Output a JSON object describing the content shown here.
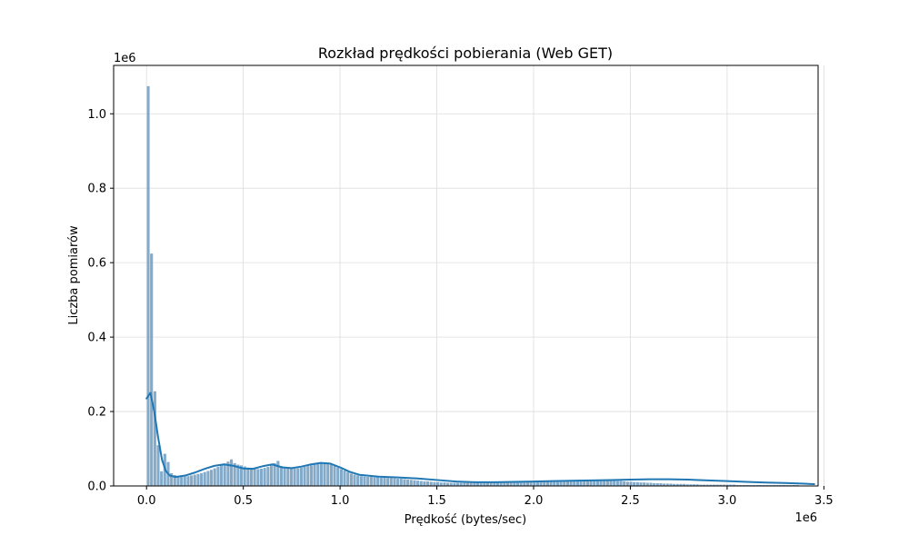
{
  "chart_data": {
    "type": "bar",
    "title": "Rozkład prędkości pobierania (Web GET)",
    "xlabel": "Prędkość (bytes/sec)",
    "ylabel": "Liczba pomiarów",
    "x_offset_label": "1e6",
    "y_offset_label": "1e6",
    "xlim": [
      -0.17,
      3.47
    ],
    "ylim": [
      0,
      1.13
    ],
    "xticks": [
      {
        "value": 0.0,
        "label": "0.0"
      },
      {
        "value": 0.5,
        "label": "0.5"
      },
      {
        "value": 1.0,
        "label": "1.0"
      },
      {
        "value": 1.5,
        "label": "1.5"
      },
      {
        "value": 2.0,
        "label": "2.0"
      },
      {
        "value": 2.5,
        "label": "2.5"
      },
      {
        "value": 3.0,
        "label": "3.0"
      },
      {
        "value": 3.5,
        "label": "3.5"
      }
    ],
    "yticks": [
      {
        "value": 0.0,
        "label": "0.0"
      },
      {
        "value": 0.2,
        "label": "0.2"
      },
      {
        "value": 0.4,
        "label": "0.4"
      },
      {
        "value": 0.6,
        "label": "0.6"
      },
      {
        "value": 0.8,
        "label": "0.8"
      },
      {
        "value": 1.0,
        "label": "1.0"
      }
    ],
    "grid": true,
    "series": [
      {
        "kind": "histogram",
        "color": "#5b8db8",
        "bin_width": 0.0172,
        "bin_start": 0.0,
        "values": [
          1.075,
          0.625,
          0.255,
          0.11,
          0.04,
          0.087,
          0.065,
          0.035,
          0.03,
          0.024,
          0.025,
          0.026,
          0.027,
          0.029,
          0.031,
          0.033,
          0.035,
          0.038,
          0.041,
          0.044,
          0.048,
          0.052,
          0.056,
          0.061,
          0.066,
          0.072,
          0.062,
          0.058,
          0.056,
          0.053,
          0.05,
          0.049,
          0.047,
          0.046,
          0.047,
          0.049,
          0.052,
          0.056,
          0.062,
          0.068,
          0.054,
          0.051,
          0.049,
          0.047,
          0.047,
          0.048,
          0.05,
          0.052,
          0.054,
          0.056,
          0.058,
          0.06,
          0.061,
          0.061,
          0.06,
          0.058,
          0.054,
          0.05,
          0.046,
          0.042,
          0.038,
          0.034,
          0.031,
          0.029,
          0.027,
          0.026,
          0.025,
          0.025,
          0.024,
          0.024,
          0.023,
          0.023,
          0.022,
          0.022,
          0.021,
          0.02,
          0.02,
          0.019,
          0.018,
          0.017,
          0.016,
          0.015,
          0.014,
          0.013,
          0.013,
          0.012,
          0.011,
          0.011,
          0.01,
          0.01,
          0.009,
          0.009,
          0.009,
          0.009,
          0.009,
          0.009,
          0.009,
          0.009,
          0.009,
          0.009,
          0.009,
          0.01,
          0.01,
          0.01,
          0.01,
          0.01,
          0.01,
          0.01,
          0.011,
          0.011,
          0.011,
          0.011,
          0.011,
          0.012,
          0.012,
          0.012,
          0.012,
          0.013,
          0.013,
          0.013,
          0.014,
          0.014,
          0.014,
          0.015,
          0.015,
          0.015,
          0.015,
          0.016,
          0.016,
          0.016,
          0.016,
          0.016,
          0.016,
          0.016,
          0.016,
          0.016,
          0.016,
          0.016,
          0.015,
          0.015,
          0.015,
          0.014,
          0.014,
          0.013,
          0.012,
          0.012,
          0.011,
          0.011,
          0.01,
          0.01,
          0.009,
          0.009,
          0.008,
          0.008,
          0.008,
          0.007,
          0.007,
          0.007,
          0.006,
          0.006,
          0.006,
          0.006,
          0.005,
          0.005,
          0.005,
          0.005,
          0.004,
          0.004,
          0.004,
          0.004,
          0.004,
          0.004,
          0.004,
          0.004,
          0.004,
          0.004,
          0.004,
          0.003,
          0.003,
          0.003,
          0.003,
          0.003,
          0.003,
          0.003,
          0.003,
          0.003,
          0.003,
          0.003,
          0.003,
          0.003,
          0.003,
          0.003,
          0.003,
          0.003,
          0.003,
          0.003
        ]
      },
      {
        "kind": "kde",
        "color": "#1f77b4",
        "x": [
          0.0,
          0.02,
          0.04,
          0.06,
          0.08,
          0.1,
          0.12,
          0.15,
          0.2,
          0.25,
          0.3,
          0.35,
          0.4,
          0.45,
          0.5,
          0.55,
          0.6,
          0.65,
          0.7,
          0.75,
          0.8,
          0.85,
          0.9,
          0.95,
          1.0,
          1.05,
          1.1,
          1.2,
          1.3,
          1.4,
          1.5,
          1.6,
          1.7,
          1.8,
          1.9,
          2.0,
          2.1,
          2.2,
          2.3,
          2.4,
          2.5,
          2.6,
          2.7,
          2.8,
          2.9,
          3.0,
          3.1,
          3.2,
          3.3,
          3.4,
          3.45
        ],
        "y": [
          0.235,
          0.25,
          0.2,
          0.13,
          0.07,
          0.04,
          0.028,
          0.024,
          0.028,
          0.036,
          0.046,
          0.054,
          0.058,
          0.054,
          0.047,
          0.046,
          0.053,
          0.058,
          0.05,
          0.048,
          0.052,
          0.058,
          0.062,
          0.06,
          0.05,
          0.038,
          0.03,
          0.025,
          0.023,
          0.02,
          0.016,
          0.012,
          0.01,
          0.01,
          0.011,
          0.012,
          0.013,
          0.014,
          0.015,
          0.016,
          0.017,
          0.018,
          0.018,
          0.017,
          0.015,
          0.013,
          0.011,
          0.009,
          0.008,
          0.006,
          0.005
        ]
      }
    ]
  }
}
